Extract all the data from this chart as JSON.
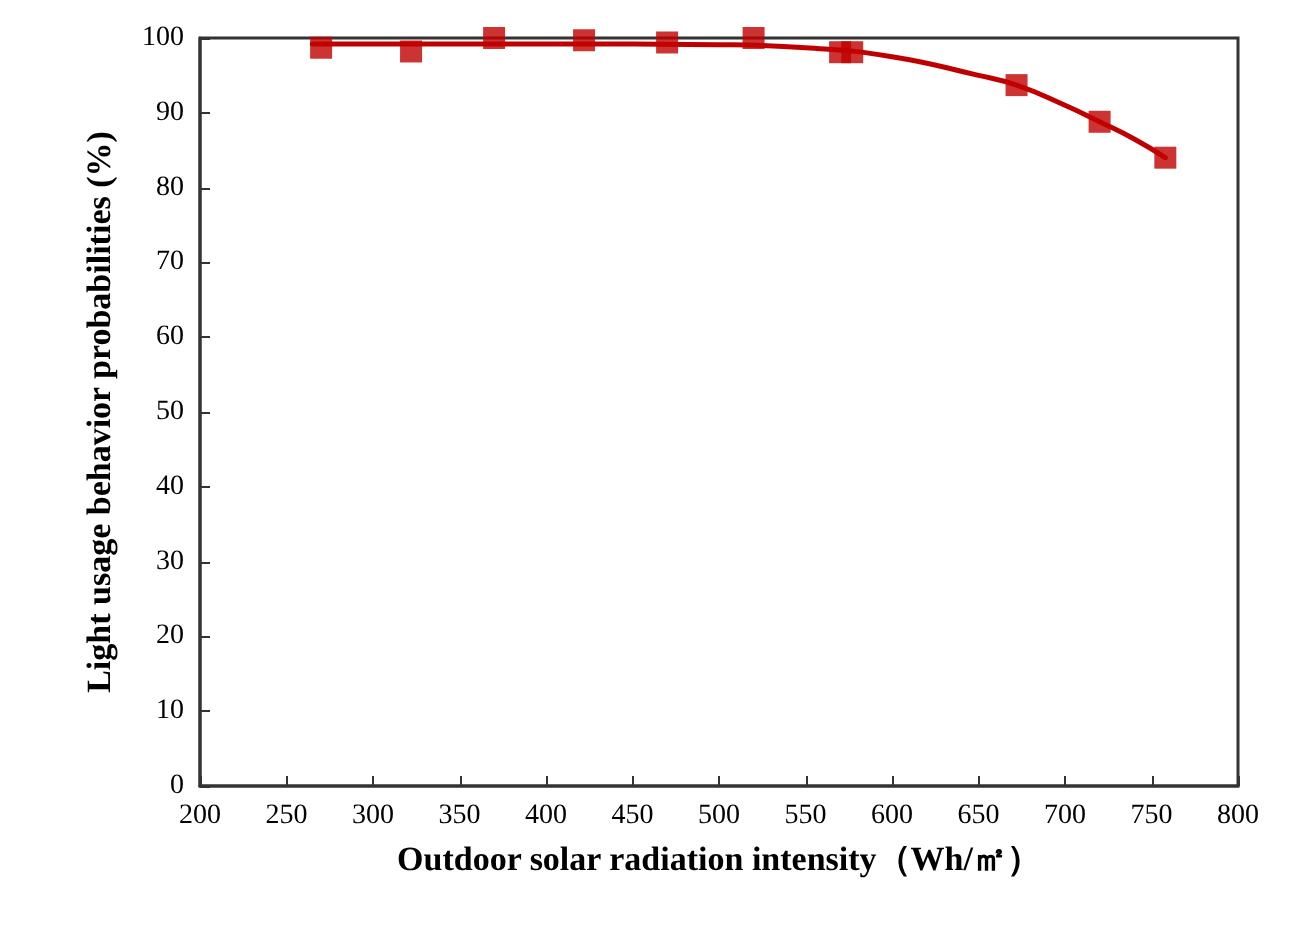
{
  "chart_data": {
    "type": "scatter",
    "xlabel": "Outdoor solar radiation intensity（Wh/㎡）",
    "ylabel": "Light usage behavior probabilities (%)",
    "xlim": [
      200,
      800
    ],
    "ylim": [
      0,
      100
    ],
    "xticks": [
      200,
      250,
      300,
      350,
      400,
      450,
      500,
      550,
      600,
      650,
      700,
      750,
      800
    ],
    "yticks": [
      0,
      10,
      20,
      30,
      40,
      50,
      60,
      70,
      80,
      90,
      100
    ],
    "grid": false,
    "series": [
      {
        "color": "#c00000",
        "marker": "square",
        "x": [
          270,
          322,
          370,
          422,
          470,
          520,
          570,
          577,
          672,
          720,
          758
        ],
        "values": [
          98.7,
          98.2,
          100,
          99.7,
          99.4,
          100,
          98.1,
          98.1,
          93.7,
          88.8,
          84
        ]
      },
      {
        "type": "line",
        "color": "#c00000",
        "marker": "none",
        "line_style": "solid",
        "x": [
          265,
          300,
          400,
          500,
          550,
          600,
          650,
          672,
          700,
          720,
          740,
          758
        ],
        "values": [
          99.2,
          99.2,
          99.2,
          99.1,
          98.7,
          97.5,
          95,
          93.7,
          91,
          88.8,
          86.5,
          84
        ]
      }
    ]
  }
}
